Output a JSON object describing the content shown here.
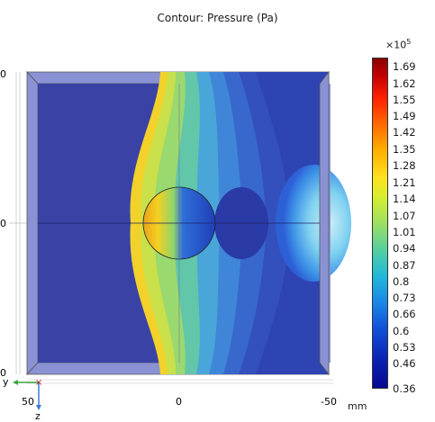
{
  "title": "Contour: Pressure (Pa)",
  "axes": {
    "left_ticks": [
      "0",
      "0",
      "0"
    ],
    "bottom_ticks": [
      "50",
      "0",
      "-50"
    ],
    "unit": "mm",
    "triad": {
      "y_label": "y",
      "z_label": "z"
    }
  },
  "colorbar": {
    "multiplier": "×10",
    "exponent": "5",
    "labels": [
      "1.69",
      "1.62",
      "1.55",
      "1.49",
      "1.42",
      "1.35",
      "1.28",
      "1.21",
      "1.14",
      "1.07",
      "1.01",
      "0.94",
      "0.87",
      "0.8",
      "0.73",
      "0.66",
      "0.6",
      "0.53",
      "0.46",
      "0.36"
    ]
  },
  "colors": {
    "background_field": "#3a42a6",
    "obstacle_edge": "#222222"
  }
}
